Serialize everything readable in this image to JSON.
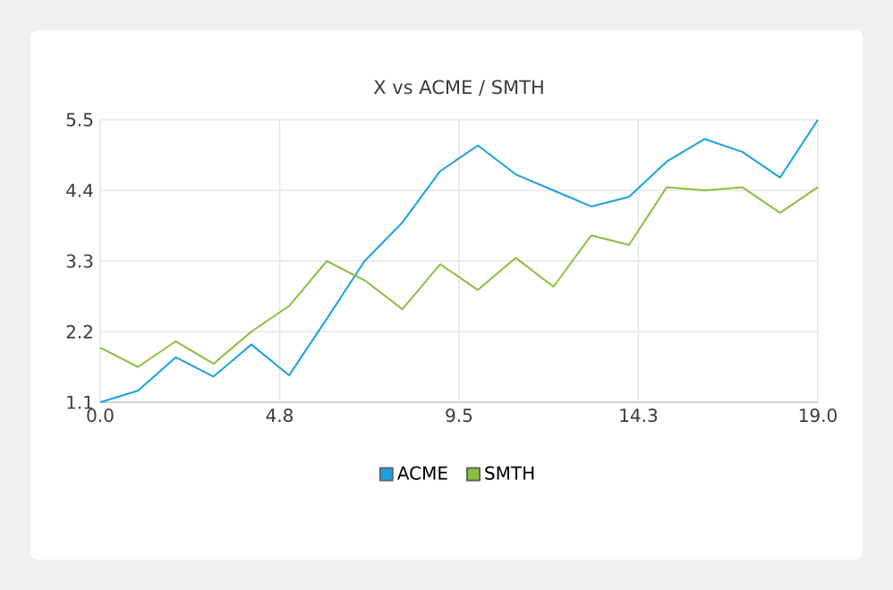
{
  "chart_data": {
    "type": "line",
    "title": "X vs ACME / SMTH",
    "x": [
      0,
      1,
      2,
      3,
      4,
      5,
      6,
      7,
      8,
      9,
      10,
      11,
      12,
      13,
      14,
      15,
      16,
      17,
      18,
      19
    ],
    "series": [
      {
        "name": "ACME",
        "color": "#1ba1e2",
        "values": [
          1.1,
          1.28,
          1.8,
          1.5,
          2.0,
          1.52,
          2.4,
          3.3,
          3.9,
          4.7,
          5.1,
          4.65,
          4.4,
          4.15,
          4.3,
          4.85,
          5.2,
          5.0,
          4.6,
          5.5
        ]
      },
      {
        "name": "SMTH",
        "color": "#8cbf3f",
        "values": [
          1.95,
          1.65,
          2.05,
          1.7,
          2.2,
          2.6,
          3.3,
          3.0,
          2.55,
          3.25,
          2.85,
          3.35,
          2.9,
          3.7,
          3.55,
          4.45,
          4.4,
          4.45,
          4.05,
          4.45
        ]
      }
    ],
    "xlim": [
      0,
      19
    ],
    "xticks": [
      {
        "value": 0,
        "label": "0.0"
      },
      {
        "value": 4.75,
        "label": "4.8"
      },
      {
        "value": 9.5,
        "label": "9.5"
      },
      {
        "value": 14.25,
        "label": "14.3"
      },
      {
        "value": 19,
        "label": "19.0"
      }
    ],
    "ylim": [
      1.1,
      5.5
    ],
    "yticks": [
      1.1,
      2.2,
      3.3,
      4.4,
      5.5
    ],
    "grid": true,
    "legend": "bottom"
  }
}
